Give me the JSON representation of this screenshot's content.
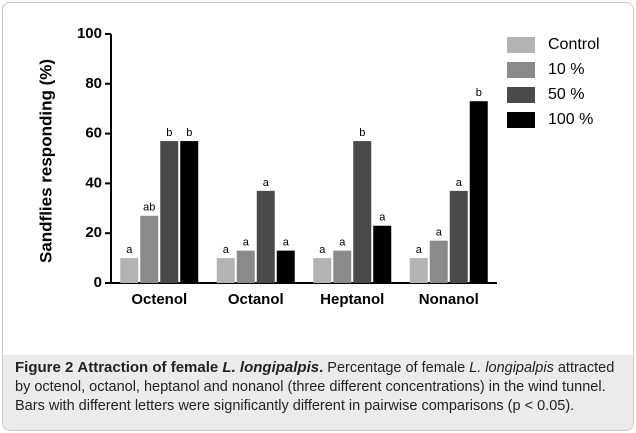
{
  "chart_data": {
    "type": "bar",
    "ylabel": "Sandflies responding (%)",
    "categories": [
      "Octenol",
      "Octanol",
      "Heptanol",
      "Nonanol"
    ],
    "series": [
      {
        "name": "Control",
        "color": "#b3b3b3",
        "values": [
          10,
          10,
          10,
          10
        ],
        "letters": [
          "a",
          "a",
          "a",
          "a"
        ]
      },
      {
        "name": "10 %",
        "color": "#8a8a8a",
        "values": [
          27,
          13,
          13,
          17
        ],
        "letters": [
          "ab",
          "a",
          "a",
          "a"
        ]
      },
      {
        "name": "50 %",
        "color": "#4a4a4a",
        "values": [
          57,
          37,
          57,
          37
        ],
        "letters": [
          "b",
          "a",
          "b",
          "a"
        ]
      },
      {
        "name": "100 %",
        "color": "#000000",
        "values": [
          57,
          13,
          23,
          73
        ],
        "letters": [
          "b",
          "a",
          "a",
          "b"
        ]
      }
    ],
    "ylim": [
      0,
      100
    ],
    "yticks": [
      0,
      20,
      40,
      60,
      80,
      100
    ],
    "legend": "right"
  },
  "caption": {
    "label": "Figure 2",
    "title": [
      "Attraction of female ",
      "L. longipalpis",
      "."
    ],
    "body": [
      "Percentage of female ",
      "L. longipalpis",
      " attracted by octenol, octanol, heptanol and nonanol (three different concentrations) in the wind tunnel. Bars with different letters were significantly different in pairwise comparisons (p < 0.05)."
    ]
  }
}
